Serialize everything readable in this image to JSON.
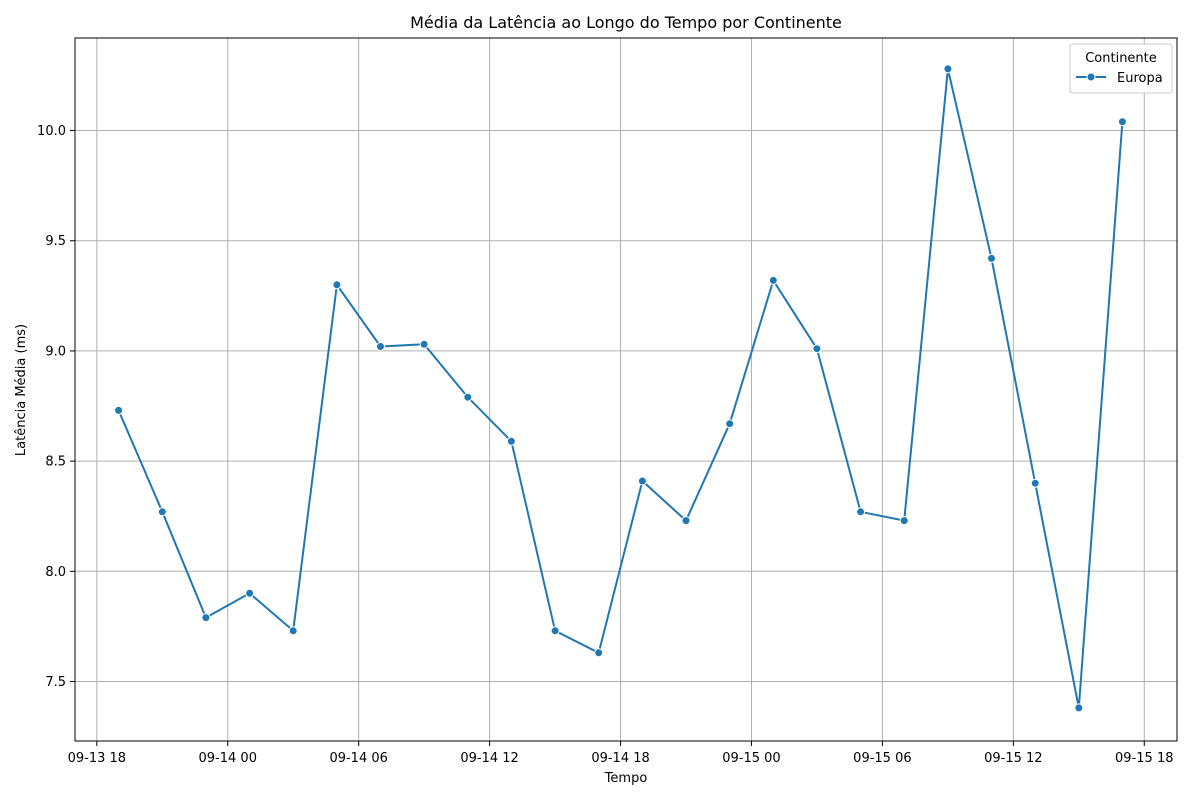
{
  "chart_data": {
    "type": "line",
    "title": "Média da Latência ao Longo do Tempo por Continente",
    "xlabel": "Tempo",
    "ylabel": "Latência Média (ms)",
    "x_ticks": [
      {
        "t": "2023-09-13T18:00",
        "label": "09-13 18"
      },
      {
        "t": "2023-09-14T00:00",
        "label": "09-14 00"
      },
      {
        "t": "2023-09-14T06:00",
        "label": "09-14 06"
      },
      {
        "t": "2023-09-14T12:00",
        "label": "09-14 12"
      },
      {
        "t": "2023-09-14T18:00",
        "label": "09-14 18"
      },
      {
        "t": "2023-09-15T00:00",
        "label": "09-15 00"
      },
      {
        "t": "2023-09-15T06:00",
        "label": "09-15 06"
      },
      {
        "t": "2023-09-15T12:00",
        "label": "09-15 12"
      },
      {
        "t": "2023-09-15T18:00",
        "label": "09-15 18"
      }
    ],
    "y_ticks": [
      "7.5",
      "8.0",
      "8.5",
      "9.0",
      "9.5",
      "10.0"
    ],
    "ylim": [
      7.23,
      10.42
    ],
    "xlim": [
      "2023-09-13T17:00",
      "2023-09-15T19:30"
    ],
    "grid": true,
    "legend": {
      "title": "Continente",
      "placement": "top-right"
    },
    "series": [
      {
        "name": "Europa",
        "color": "#1f77b4",
        "marker": "circle",
        "points": [
          {
            "t": "2023-09-13T19:00",
            "y": 8.73
          },
          {
            "t": "2023-09-13T21:00",
            "y": 8.27
          },
          {
            "t": "2023-09-13T23:00",
            "y": 7.79
          },
          {
            "t": "2023-09-14T01:00",
            "y": 7.9
          },
          {
            "t": "2023-09-14T03:00",
            "y": 7.73
          },
          {
            "t": "2023-09-14T05:00",
            "y": 9.3
          },
          {
            "t": "2023-09-14T07:00",
            "y": 9.02
          },
          {
            "t": "2023-09-14T09:00",
            "y": 9.03
          },
          {
            "t": "2023-09-14T11:00",
            "y": 8.79
          },
          {
            "t": "2023-09-14T13:00",
            "y": 8.59
          },
          {
            "t": "2023-09-14T15:00",
            "y": 7.73
          },
          {
            "t": "2023-09-14T17:00",
            "y": 7.63
          },
          {
            "t": "2023-09-14T19:00",
            "y": 8.41
          },
          {
            "t": "2023-09-14T21:00",
            "y": 8.23
          },
          {
            "t": "2023-09-14T23:00",
            "y": 8.67
          },
          {
            "t": "2023-09-15T01:00",
            "y": 9.32
          },
          {
            "t": "2023-09-15T03:00",
            "y": 9.01
          },
          {
            "t": "2023-09-15T05:00",
            "y": 8.27
          },
          {
            "t": "2023-09-15T07:00",
            "y": 8.23
          },
          {
            "t": "2023-09-15T09:00",
            "y": 10.28
          },
          {
            "t": "2023-09-15T11:00",
            "y": 9.42
          },
          {
            "t": "2023-09-15T13:00",
            "y": 8.4
          },
          {
            "t": "2023-09-15T15:00",
            "y": 7.38
          },
          {
            "t": "2023-09-15T17:00",
            "y": 10.04
          }
        ]
      }
    ]
  }
}
